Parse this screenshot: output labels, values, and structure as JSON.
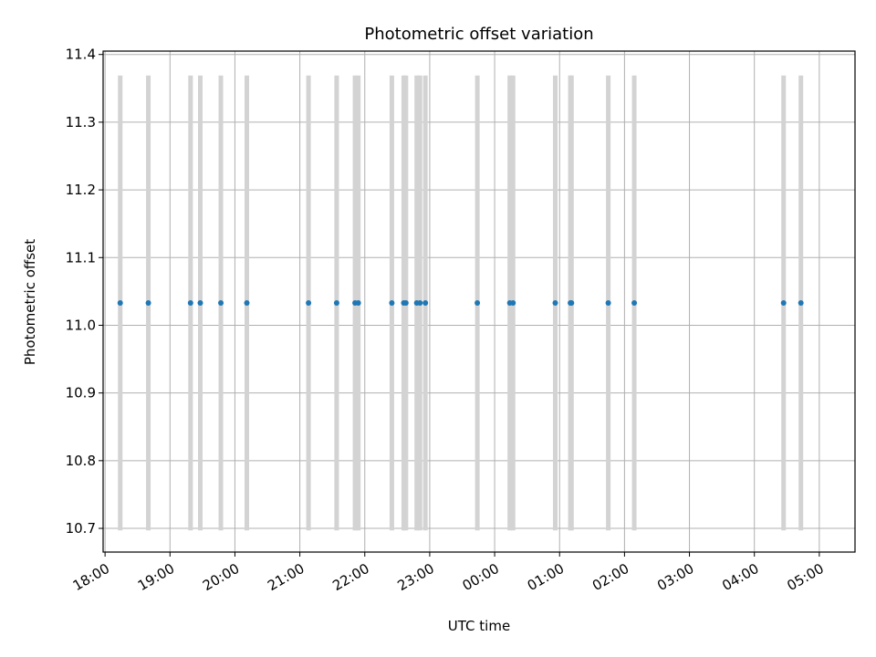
{
  "chart_data": {
    "type": "scatter",
    "title": "Photometric offset variation",
    "xlabel": "UTC time",
    "ylabel": "Photometric offset",
    "x_ticks": [
      "18:00",
      "19:00",
      "20:00",
      "21:00",
      "22:00",
      "23:00",
      "00:00",
      "01:00",
      "02:00",
      "03:00",
      "04:00",
      "05:00"
    ],
    "y_ticks": [
      "10.7",
      "10.8",
      "10.9",
      "11.0",
      "11.1",
      "11.2",
      "11.3",
      "11.4"
    ],
    "xlim_hours_from_18": [
      -0.03,
      11.55
    ],
    "ylim": [
      10.665,
      11.405
    ],
    "grid": true,
    "y_value": 11.033,
    "error_bar": {
      "low": 10.697,
      "high": 11.369,
      "color": "#d3d3d3"
    },
    "point_color": "#1f77b4",
    "x_times": [
      "18:14",
      "18:40",
      "19:19",
      "19:28",
      "19:47",
      "20:11",
      "21:08",
      "21:34",
      "21:51",
      "21:54",
      "22:25",
      "22:36",
      "22:38",
      "22:48",
      "22:51",
      "22:56",
      "23:44",
      "00:14",
      "00:17",
      "00:56",
      "01:10",
      "01:11",
      "01:45",
      "02:09",
      "04:27",
      "04:43"
    ]
  }
}
